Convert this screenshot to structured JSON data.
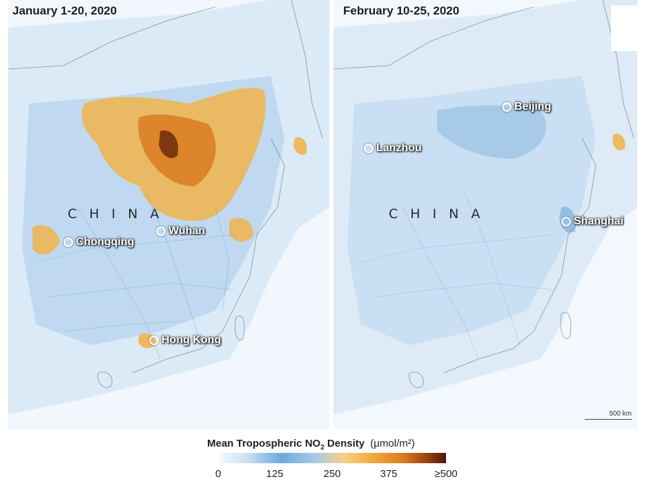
{
  "panels": [
    {
      "title": "January 1-20, 2020",
      "country_label": "CHINA",
      "cities": [
        "Chongqing",
        "Wuhan",
        "Hong Kong"
      ]
    },
    {
      "title": "February 10-25, 2020",
      "country_label": "CHINA",
      "cities": [
        "Lanzhou",
        "Beijing",
        "Shanghai"
      ]
    }
  ],
  "scale_label": "500 km",
  "legend": {
    "title": "Mean Tropospheric NO",
    "subscript": "2",
    "title_suffix": " Density",
    "units": "(μmol/m²)",
    "ticks": [
      "0",
      "125",
      "250",
      "375",
      "≥500"
    ]
  },
  "colors": {
    "low": "#cfe2f3",
    "mid": "#6fa8dc",
    "high": "#f2a93b",
    "max": "#4a1506"
  }
}
